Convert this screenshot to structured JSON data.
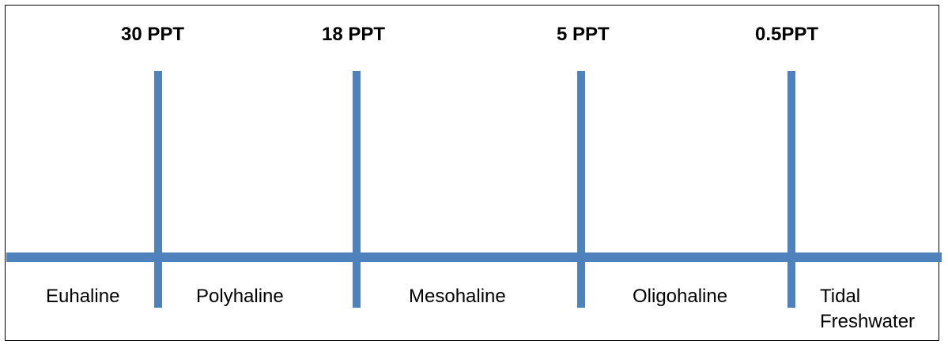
{
  "thresholds": [
    {
      "label": "30 PPT"
    },
    {
      "label": "18 PPT"
    },
    {
      "label": "5 PPT"
    },
    {
      "label": "0.5PPT"
    }
  ],
  "zones": [
    {
      "label": "Euhaline"
    },
    {
      "label": "Polyhaline"
    },
    {
      "label": "Mesohaline"
    },
    {
      "label": "Oligohaline"
    },
    {
      "label": "Tidal\nFreshwater"
    }
  ],
  "colors": {
    "line": "#4f81bd",
    "text": "#000000",
    "border": "#000000"
  }
}
